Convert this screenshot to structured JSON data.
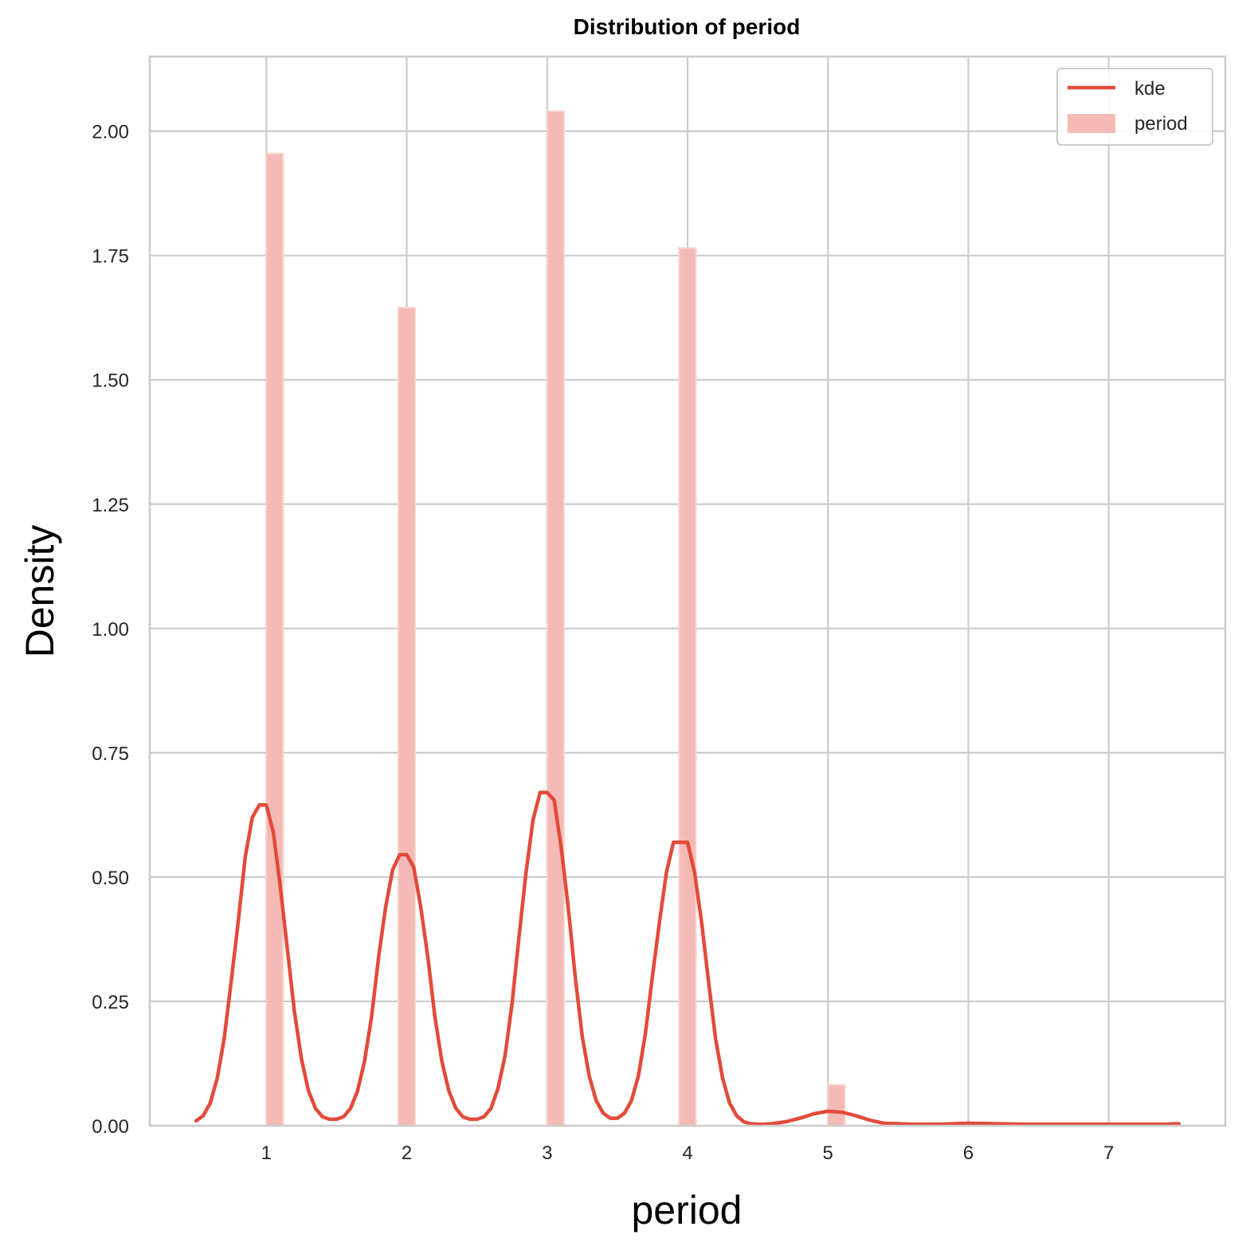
{
  "chart_data": {
    "type": "bar",
    "title": "Distribution of period",
    "xlabel": "period",
    "ylabel": "Density",
    "xlim": [
      0.17,
      7.83
    ],
    "ylim": [
      0,
      2.15
    ],
    "xticks": [
      1,
      2,
      3,
      4,
      5,
      6,
      7
    ],
    "yticks": [
      0,
      0.25,
      0.5,
      0.75,
      1.0,
      1.25,
      1.5,
      1.75,
      2.0
    ],
    "ytick_labels": [
      "0.00",
      "0.25",
      "0.50",
      "0.75",
      "1.00",
      "1.25",
      "1.50",
      "1.75",
      "2.00"
    ],
    "grid": true,
    "legend_position": "top-right",
    "colors": {
      "kde": "#e34a3a",
      "hist": "#f4b6b1",
      "grid": "#cccccc"
    },
    "histogram": {
      "name": "period",
      "bins": [
        {
          "x0": 1.0,
          "x1": 1.12,
          "density": 1.955
        },
        {
          "x0": 1.94,
          "x1": 2.06,
          "density": 1.645
        },
        {
          "x0": 3.0,
          "x1": 3.12,
          "density": 2.04
        },
        {
          "x0": 3.94,
          "x1": 4.06,
          "density": 1.765
        },
        {
          "x0": 5.0,
          "x1": 5.12,
          "density": 0.082
        }
      ]
    },
    "kde": {
      "name": "kde",
      "x": [
        0.5,
        0.55,
        0.6,
        0.65,
        0.7,
        0.75,
        0.8,
        0.85,
        0.9,
        0.95,
        1.0,
        1.05,
        1.1,
        1.15,
        1.2,
        1.25,
        1.3,
        1.35,
        1.4,
        1.45,
        1.5,
        1.55,
        1.6,
        1.65,
        1.7,
        1.75,
        1.8,
        1.85,
        1.9,
        1.95,
        2.0,
        2.05,
        2.1,
        2.15,
        2.2,
        2.25,
        2.3,
        2.35,
        2.4,
        2.45,
        2.5,
        2.55,
        2.6,
        2.65,
        2.7,
        2.75,
        2.8,
        2.85,
        2.9,
        2.95,
        3.0,
        3.05,
        3.1,
        3.15,
        3.2,
        3.25,
        3.3,
        3.35,
        3.4,
        3.45,
        3.5,
        3.55,
        3.6,
        3.65,
        3.7,
        3.75,
        3.8,
        3.85,
        3.9,
        3.95,
        4.0,
        4.05,
        4.1,
        4.15,
        4.2,
        4.25,
        4.3,
        4.35,
        4.4,
        4.45,
        4.5,
        4.55,
        4.6,
        4.7,
        4.8,
        4.9,
        5.0,
        5.1,
        5.2,
        5.3,
        5.4,
        5.6,
        5.8,
        6.0,
        6.2,
        6.4,
        6.6,
        6.8,
        7.0,
        7.2,
        7.4,
        7.5
      ],
      "y": [
        0.01,
        0.02,
        0.045,
        0.095,
        0.175,
        0.29,
        0.41,
        0.54,
        0.62,
        0.645,
        0.645,
        0.59,
        0.48,
        0.355,
        0.23,
        0.135,
        0.07,
        0.035,
        0.018,
        0.013,
        0.013,
        0.018,
        0.035,
        0.07,
        0.13,
        0.22,
        0.34,
        0.44,
        0.515,
        0.545,
        0.545,
        0.52,
        0.44,
        0.34,
        0.22,
        0.13,
        0.07,
        0.035,
        0.018,
        0.013,
        0.013,
        0.018,
        0.035,
        0.075,
        0.14,
        0.245,
        0.38,
        0.51,
        0.615,
        0.67,
        0.67,
        0.655,
        0.56,
        0.44,
        0.3,
        0.18,
        0.1,
        0.05,
        0.025,
        0.015,
        0.015,
        0.025,
        0.05,
        0.1,
        0.185,
        0.3,
        0.41,
        0.51,
        0.57,
        0.57,
        0.57,
        0.51,
        0.41,
        0.29,
        0.175,
        0.095,
        0.045,
        0.02,
        0.008,
        0.004,
        0.003,
        0.003,
        0.004,
        0.008,
        0.015,
        0.024,
        0.029,
        0.027,
        0.02,
        0.011,
        0.005,
        0.003,
        0.003,
        0.005,
        0.004,
        0.003,
        0.003,
        0.003,
        0.003,
        0.003,
        0.003,
        0.004
      ]
    },
    "legend": [
      "kde",
      "period"
    ]
  }
}
